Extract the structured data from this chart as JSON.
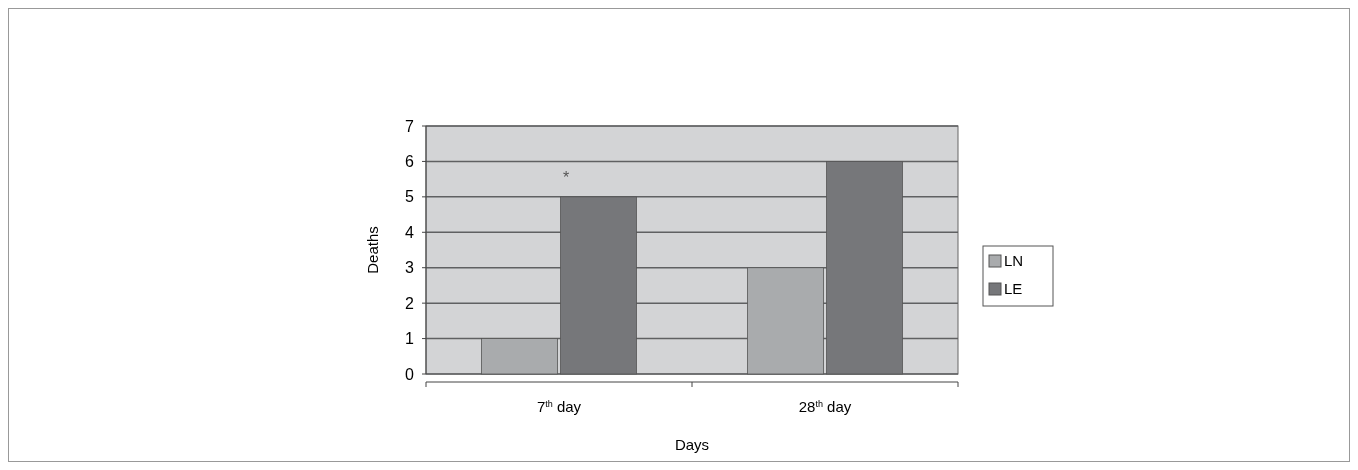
{
  "chart_data": {
    "type": "bar",
    "xlabel": "Days",
    "ylabel": "Deaths",
    "categories": [
      "7$^{th}$ day",
      "28$^{th}$ day"
    ],
    "series": [
      {
        "name": "LN",
        "color": "#a9abad",
        "values": [
          1,
          3
        ]
      },
      {
        "name": "LE",
        "color": "#76777a",
        "values": [
          5,
          6
        ]
      }
    ],
    "ylim": [
      0,
      7
    ],
    "yticks": [
      0,
      1,
      2,
      3,
      4,
      5,
      6,
      7
    ],
    "grid": "y",
    "legend": "right",
    "annotations": [
      "*"
    ]
  }
}
